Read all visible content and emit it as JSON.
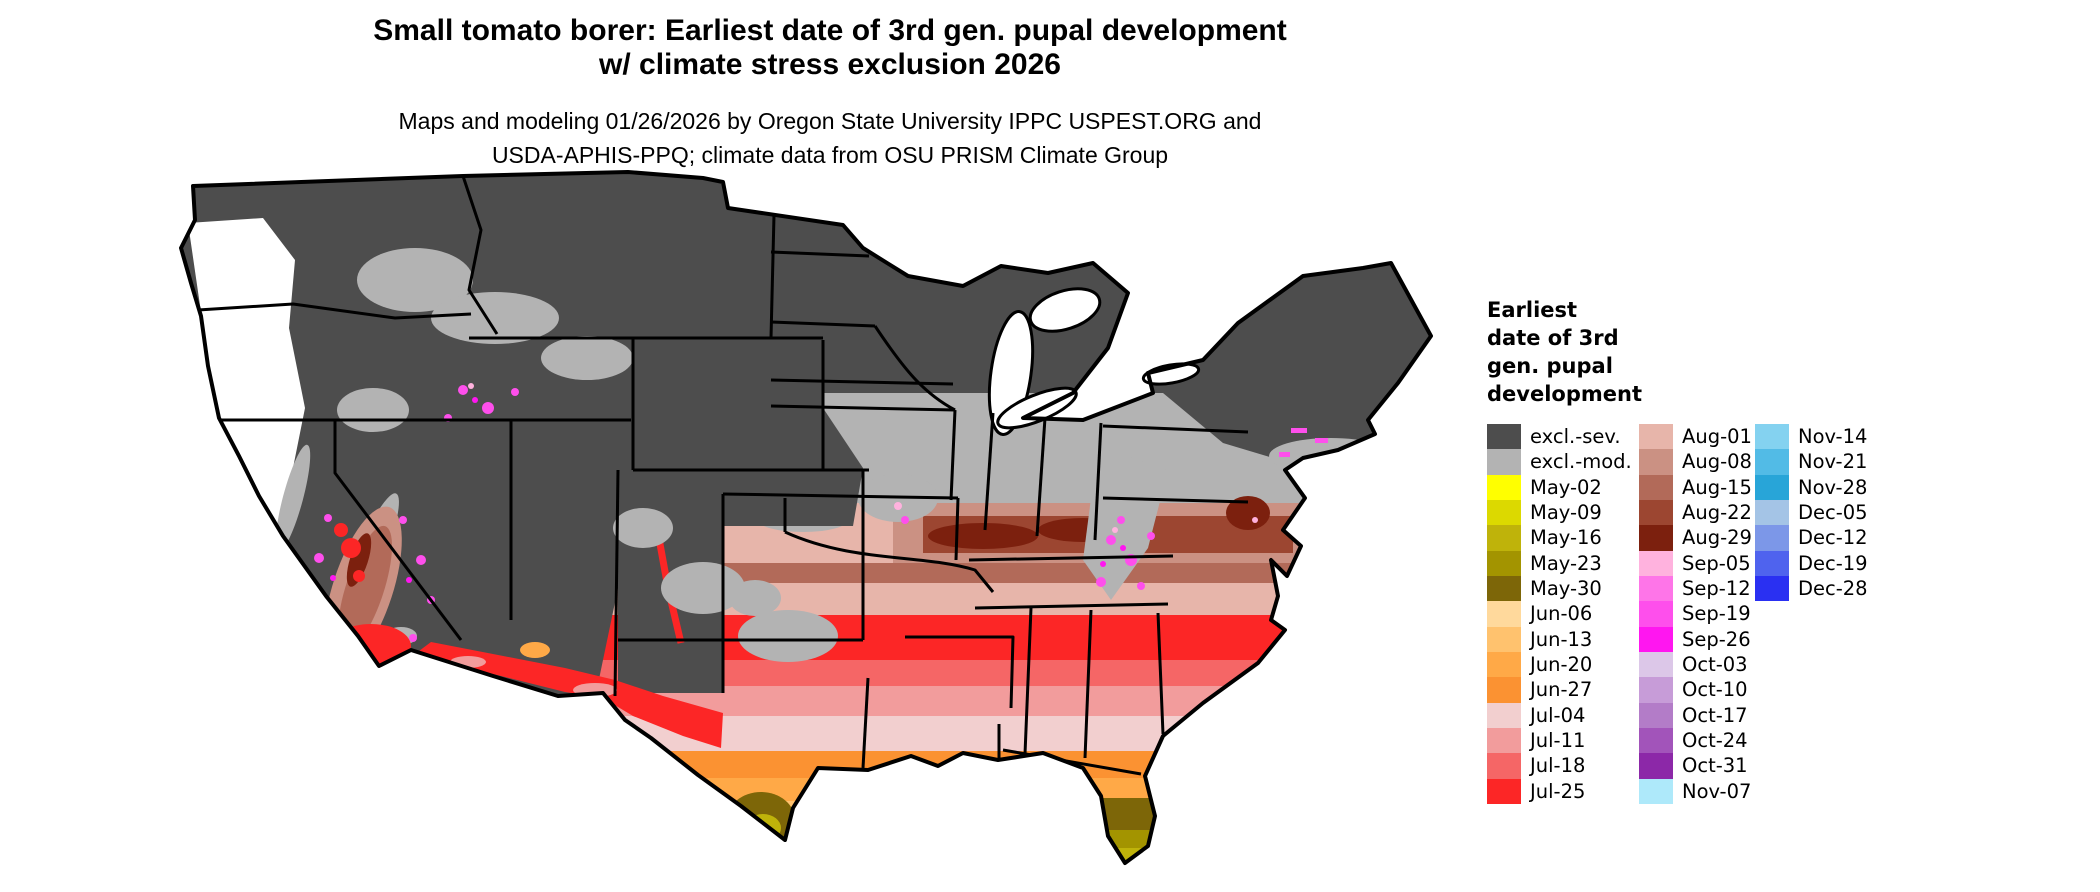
{
  "header": {
    "title_line1": "Small tomato borer: Earliest date of 3rd gen. pupal development",
    "title_line2": "w/ climate stress exclusion 2026",
    "subtitle_line1": "Maps and modeling 01/26/2026 by Oregon State University IPPC USPEST.ORG and",
    "subtitle_line2": "USDA-APHIS-PPQ; climate data from OSU PRISM Climate Group"
  },
  "legend": {
    "title_lines": [
      "Earliest",
      "date of 3rd",
      "gen. pupal",
      "development"
    ],
    "columns": [
      {
        "items": [
          {
            "label": "excl.-sev.",
            "color": "#4d4d4d"
          },
          {
            "label": "excl.-mod.",
            "color": "#b3b3b3"
          },
          {
            "label": "May-02",
            "color": "#ffff00"
          },
          {
            "label": "May-09",
            "color": "#dcd900"
          },
          {
            "label": "May-16",
            "color": "#bfb30a"
          },
          {
            "label": "May-23",
            "color": "#a39400"
          },
          {
            "label": "May-30",
            "color": "#7d6608"
          },
          {
            "label": "Jun-06",
            "color": "#ffd99c"
          },
          {
            "label": "Jun-13",
            "color": "#ffc26e"
          },
          {
            "label": "Jun-20",
            "color": "#ffa947"
          },
          {
            "label": "Jun-27",
            "color": "#fb9232"
          },
          {
            "label": "Jul-04",
            "color": "#f2cfcf"
          },
          {
            "label": "Jul-11",
            "color": "#f29c9c"
          },
          {
            "label": "Jul-18",
            "color": "#f56666"
          },
          {
            "label": "Jul-25",
            "color": "#fc2626"
          }
        ]
      },
      {
        "items": [
          {
            "label": "Aug-01",
            "color": "#e7b5aa"
          },
          {
            "label": "Aug-08",
            "color": "#cb9183"
          },
          {
            "label": "Aug-15",
            "color": "#b26a59"
          },
          {
            "label": "Aug-22",
            "color": "#9c4631"
          },
          {
            "label": "Aug-29",
            "color": "#7c200e"
          },
          {
            "label": "Sep-05",
            "color": "#ffb2de"
          },
          {
            "label": "Sep-12",
            "color": "#fe75e8"
          },
          {
            "label": "Sep-19",
            "color": "#fe4fec"
          },
          {
            "label": "Sep-26",
            "color": "#ff16f0"
          },
          {
            "label": "Oct-03",
            "color": "#dcc7e8"
          },
          {
            "label": "Oct-10",
            "color": "#c79cd8"
          },
          {
            "label": "Oct-17",
            "color": "#b37cc8"
          },
          {
            "label": "Oct-24",
            "color": "#a254ba"
          },
          {
            "label": "Oct-31",
            "color": "#8c28a8"
          },
          {
            "label": "Nov-07",
            "color": "#aee9fa"
          }
        ]
      },
      {
        "items": [
          {
            "label": "Nov-14",
            "color": "#84d2f0"
          },
          {
            "label": "Nov-21",
            "color": "#52bbe6"
          },
          {
            "label": "Nov-28",
            "color": "#28a5d8"
          },
          {
            "label": "Dec-05",
            "color": "#a4c4e6"
          },
          {
            "label": "Dec-12",
            "color": "#7c97e8"
          },
          {
            "label": "Dec-19",
            "color": "#4f63ee"
          },
          {
            "label": "Dec-28",
            "color": "#2a30f2"
          }
        ]
      }
    ]
  },
  "map": {
    "background_color": "#ffffff",
    "no_data_color": "#ffffff",
    "border_color": "#000000"
  }
}
